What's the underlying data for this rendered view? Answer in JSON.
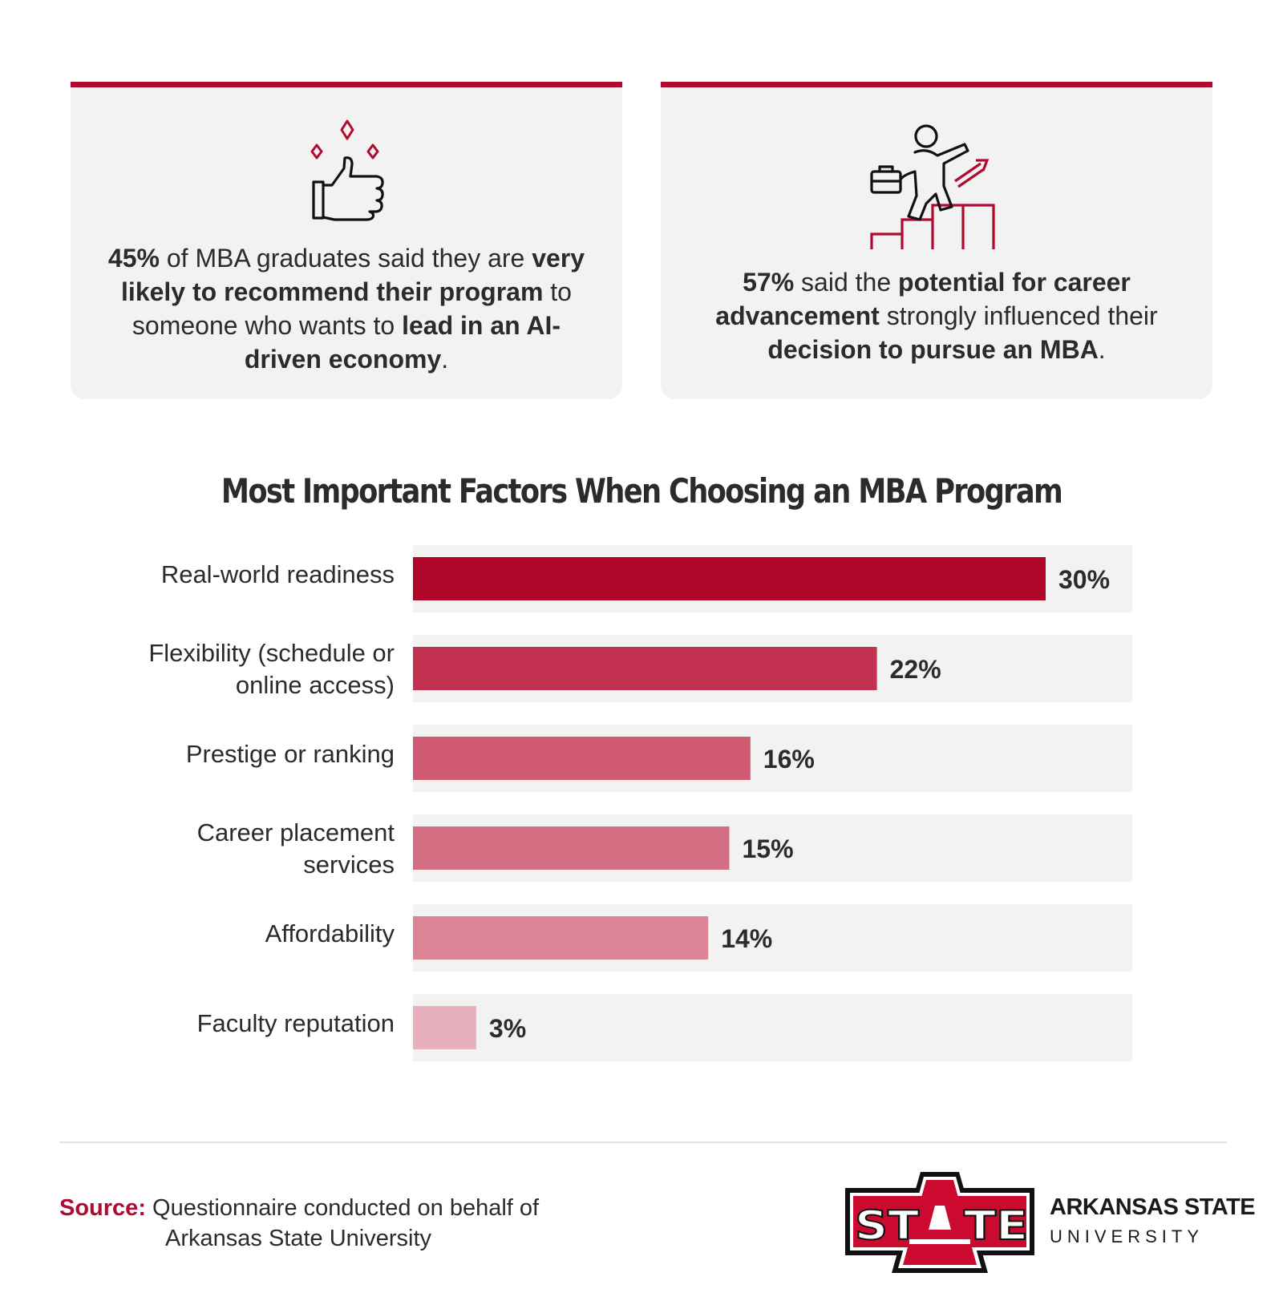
{
  "cards": {
    "left": {
      "icon": "thumbs-up-sparkle-icon",
      "p1": "45%",
      "p2": " of MBA graduates said they are ",
      "p3": "very likely to recommend their program",
      "p4": " to someone who wants to ",
      "p5": "lead in an AI-driven economy",
      "p6": "."
    },
    "right": {
      "icon": "career-ladder-climber-icon",
      "p1": "57%",
      "p2": " said the ",
      "p3": "potential for career advancement",
      "p4": " strongly influenced their ",
      "p5": "decision to pursue an MBA",
      "p6": "."
    }
  },
  "chart_data": {
    "type": "bar",
    "orientation": "horizontal",
    "title": "Most Important Factors When Choosing an MBA Program",
    "categories": [
      "Real-world readiness",
      "Flexibility (schedule or online access)",
      "Prestige or ranking",
      "Career placement services",
      "Affordability",
      "Faculty reputation"
    ],
    "values": [
      30,
      22,
      16,
      15,
      14,
      3
    ],
    "value_labels": [
      "30%",
      "22%",
      "16%",
      "15%",
      "14%",
      "3%"
    ],
    "colors": [
      "#b0062a",
      "#c23150",
      "#cf5a72",
      "#d46e82",
      "#dc8597",
      "#e8afbc"
    ],
    "track_color": "#f2f2f2",
    "grid": false
  },
  "source": {
    "label": "Source:",
    "line1": " Questionnaire conducted on behalf of",
    "line2": "Arkansas State University"
  },
  "logo": {
    "mark": "STATE",
    "name": "ARKANSAS STATE",
    "sub": "UNIVERSITY",
    "brand_color": "#cc092f"
  }
}
